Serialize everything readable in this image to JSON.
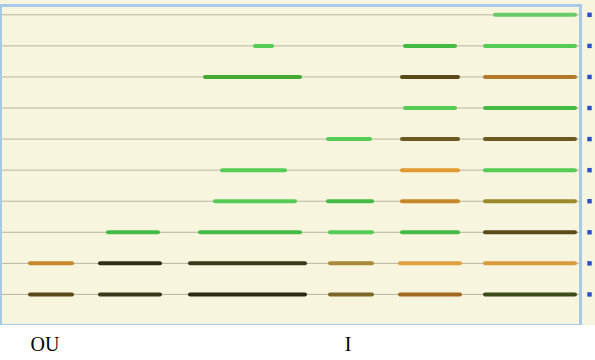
{
  "chart_data": {
    "type": "segments",
    "xlim": [
      0,
      580
    ],
    "ylim": [
      0,
      10.3
    ],
    "yticks": [
      1,
      2,
      3,
      4,
      5,
      6,
      7,
      8,
      9,
      10
    ],
    "grid": true,
    "tick_labels": false,
    "segments": [
      {
        "x1": 30,
        "x2": 72,
        "harmonic": 1,
        "color": "#5a4a1a"
      },
      {
        "x1": 30,
        "x2": 72,
        "harmonic": 2,
        "color": "#c8862a"
      },
      {
        "x1": 100,
        "x2": 160,
        "harmonic": 1,
        "color": "#3a3a18"
      },
      {
        "x1": 100,
        "x2": 160,
        "harmonic": 2,
        "color": "#2e2e14"
      },
      {
        "x1": 108,
        "x2": 158,
        "harmonic": 3,
        "color": "#44bb44"
      },
      {
        "x1": 190,
        "x2": 305,
        "harmonic": 1,
        "color": "#2a2a12"
      },
      {
        "x1": 190,
        "x2": 305,
        "harmonic": 2,
        "color": "#3a3a18"
      },
      {
        "x1": 200,
        "x2": 300,
        "harmonic": 3,
        "color": "#44bb44"
      },
      {
        "x1": 215,
        "x2": 295,
        "harmonic": 4,
        "color": "#55cc55"
      },
      {
        "x1": 222,
        "x2": 285,
        "harmonic": 5,
        "color": "#55cc55"
      },
      {
        "x1": 205,
        "x2": 300,
        "harmonic": 8,
        "color": "#44aa33"
      },
      {
        "x1": 255,
        "x2": 272,
        "harmonic": 9,
        "color": "#55cc55"
      },
      {
        "x1": 330,
        "x2": 372,
        "harmonic": 1,
        "color": "#7a6a2a"
      },
      {
        "x1": 330,
        "x2": 372,
        "harmonic": 2,
        "color": "#a88a3a"
      },
      {
        "x1": 330,
        "x2": 372,
        "harmonic": 3,
        "color": "#55cc55"
      },
      {
        "x1": 328,
        "x2": 372,
        "harmonic": 4,
        "color": "#44bb44"
      },
      {
        "x1": 328,
        "x2": 370,
        "harmonic": 6,
        "color": "#55cc55"
      },
      {
        "x1": 400,
        "x2": 460,
        "harmonic": 1,
        "color": "#a06a20"
      },
      {
        "x1": 400,
        "x2": 460,
        "harmonic": 2,
        "color": "#e0a040"
      },
      {
        "x1": 402,
        "x2": 458,
        "harmonic": 3,
        "color": "#44bb44"
      },
      {
        "x1": 402,
        "x2": 458,
        "harmonic": 4,
        "color": "#c8862a"
      },
      {
        "x1": 402,
        "x2": 458,
        "harmonic": 5,
        "color": "#e09a30"
      },
      {
        "x1": 402,
        "x2": 458,
        "harmonic": 6,
        "color": "#6a5a20"
      },
      {
        "x1": 405,
        "x2": 455,
        "harmonic": 7,
        "color": "#55cc55"
      },
      {
        "x1": 402,
        "x2": 458,
        "harmonic": 8,
        "color": "#5a4a1a"
      },
      {
        "x1": 405,
        "x2": 455,
        "harmonic": 9,
        "color": "#44bb44"
      },
      {
        "x1": 485,
        "x2": 575,
        "harmonic": 1,
        "color": "#3a4a18"
      },
      {
        "x1": 485,
        "x2": 575,
        "harmonic": 2,
        "color": "#d89a3a"
      },
      {
        "x1": 485,
        "x2": 575,
        "harmonic": 3,
        "color": "#5a4a1a"
      },
      {
        "x1": 485,
        "x2": 575,
        "harmonic": 4,
        "color": "#9a8a2a"
      },
      {
        "x1": 485,
        "x2": 575,
        "harmonic": 5,
        "color": "#55cc55"
      },
      {
        "x1": 485,
        "x2": 575,
        "harmonic": 6,
        "color": "#6a5a20"
      },
      {
        "x1": 485,
        "x2": 575,
        "harmonic": 7,
        "color": "#44bb44"
      },
      {
        "x1": 485,
        "x2": 575,
        "harmonic": 8,
        "color": "#b07a28"
      },
      {
        "x1": 485,
        "x2": 575,
        "harmonic": 9,
        "color": "#55cc55"
      },
      {
        "x1": 495,
        "x2": 575,
        "harmonic": 10,
        "color": "#66cc66"
      }
    ],
    "annotations": [
      {
        "text": "OU",
        "x": 45
      },
      {
        "text": "I",
        "x": 348
      }
    ]
  }
}
